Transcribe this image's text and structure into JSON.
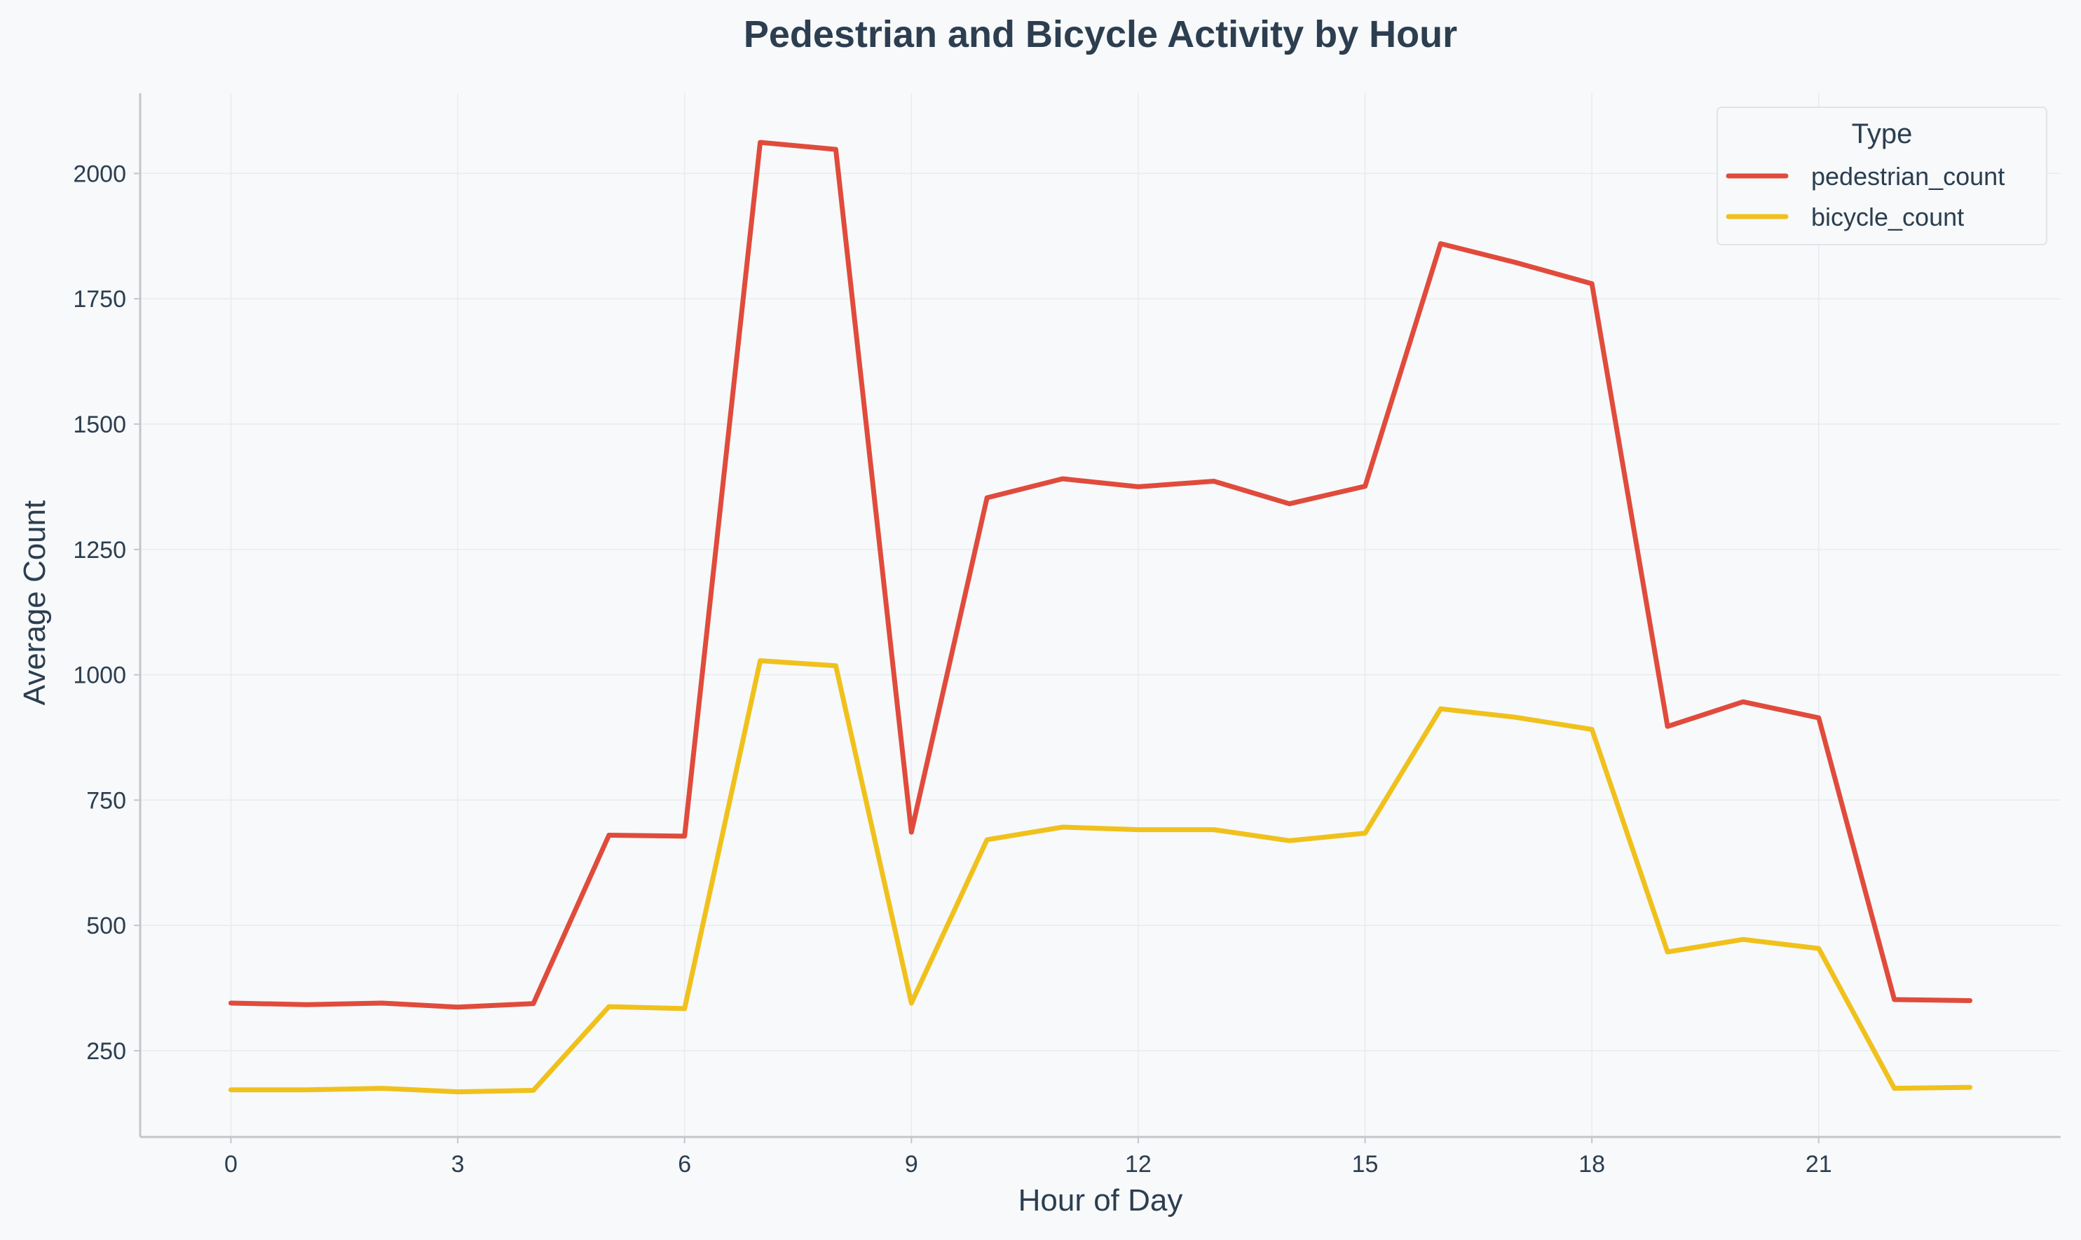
{
  "chart_data": {
    "type": "line",
    "title": "Pedestrian and Bicycle Activity by Hour",
    "xlabel": "Hour of Day",
    "ylabel": "Average Count",
    "x": [
      0,
      1,
      2,
      3,
      4,
      5,
      6,
      7,
      8,
      9,
      10,
      11,
      12,
      13,
      14,
      15,
      16,
      17,
      18,
      19,
      20,
      21,
      22,
      23
    ],
    "xticks": [
      0,
      3,
      6,
      9,
      12,
      15,
      18,
      21
    ],
    "yticks": [
      250,
      500,
      750,
      1000,
      1250,
      1500,
      1750,
      2000
    ],
    "xlim": [
      -1.2,
      24.2
    ],
    "ylim": [
      78,
      2160
    ],
    "grid": true,
    "legend": {
      "title": "Type",
      "position": "top-right"
    },
    "series": [
      {
        "name": "pedestrian_count",
        "color": "#e04b3c",
        "values": [
          345,
          342,
          345,
          337,
          344,
          680,
          678,
          2062,
          2048,
          686,
          1353,
          1391,
          1375,
          1386,
          1341,
          1376,
          1860,
          1822,
          1780,
          897,
          946,
          914,
          352,
          350
        ]
      },
      {
        "name": "bicycle_count",
        "color": "#f0c11c",
        "values": [
          172,
          172,
          175,
          168,
          171,
          338,
          334,
          1028,
          1018,
          345,
          671,
          696,
          691,
          691,
          669,
          684,
          932,
          915,
          891,
          447,
          472,
          454,
          175,
          177
        ]
      }
    ]
  }
}
